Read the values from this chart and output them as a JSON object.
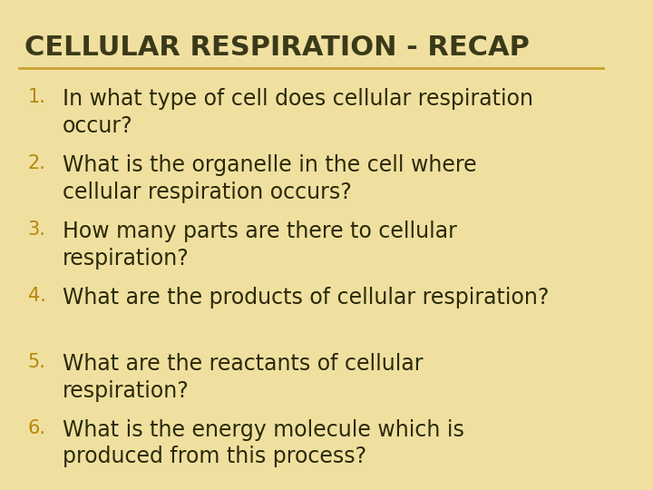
{
  "title": "CELLULAR RESPIRATION - RECAP",
  "title_color": "#3a3a1a",
  "title_fontsize": 22,
  "title_bold": true,
  "underline_color": "#c8a030",
  "background_color": "#f0e0a0",
  "number_color": "#b8860b",
  "text_color": "#2a2a0a",
  "items": [
    "In what type of cell does cellular respiration\noccur?",
    "What is the organelle in the cell where\ncellular respiration occurs?",
    "How many parts are there to cellular\nrespiration?",
    "What are the products of cellular respiration?",
    "What are the reactants of cellular\nrespiration?",
    "What is the energy molecule which is\nproduced from this process?"
  ],
  "item_fontsize": 17,
  "number_fontsize": 15
}
